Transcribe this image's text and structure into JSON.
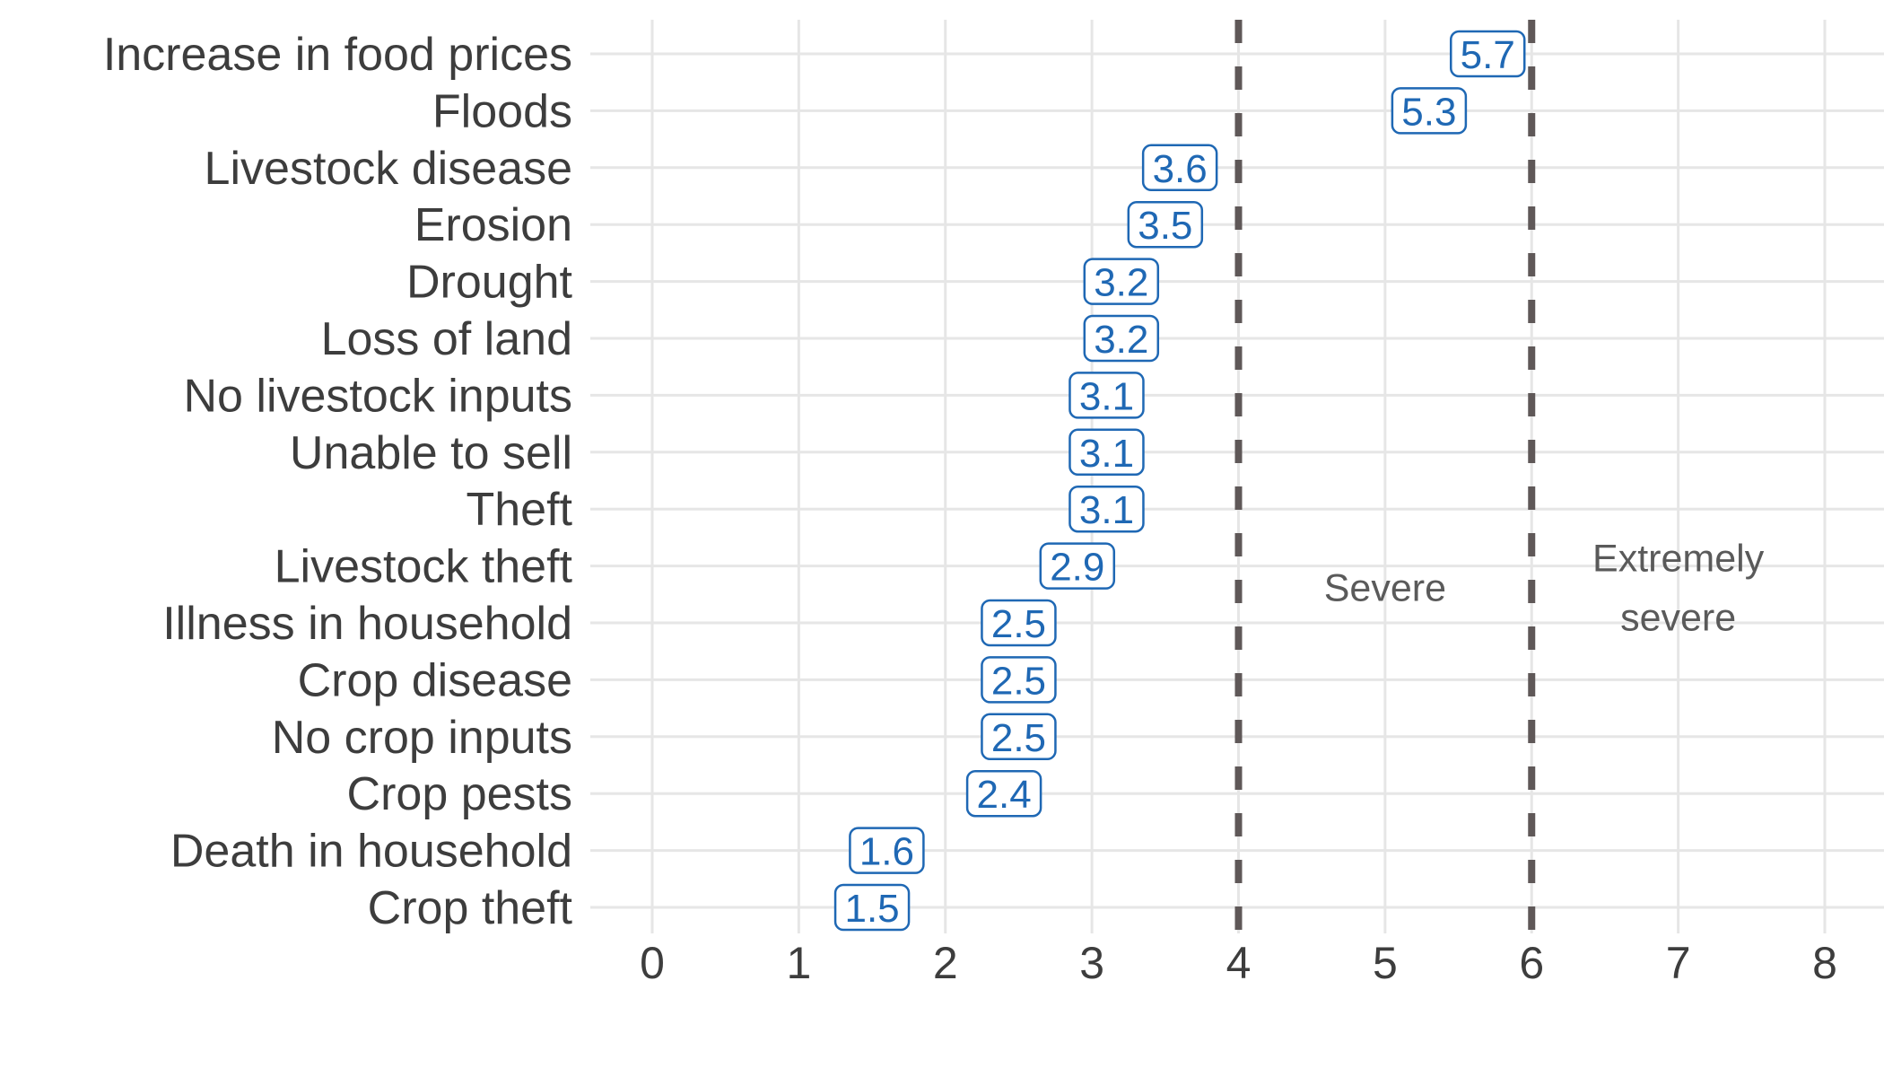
{
  "chart_data": {
    "type": "dot",
    "categories": [
      "Increase in food prices",
      "Floods",
      "Livestock disease",
      "Erosion",
      "Drought",
      "Loss of land",
      "No livestock inputs",
      "Unable to sell",
      "Theft",
      "Livestock theft",
      "Illness in household",
      "Crop disease",
      "No crop inputs",
      "Crop pests",
      "Death in household",
      "Crop theft"
    ],
    "values": [
      5.7,
      5.3,
      3.6,
      3.5,
      3.2,
      3.2,
      3.1,
      3.1,
      3.1,
      2.9,
      2.5,
      2.5,
      2.5,
      2.4,
      1.6,
      1.5
    ],
    "value_labels": [
      "5.7",
      "5.3",
      "3.6",
      "3.5",
      "3.2",
      "3.2",
      "3.1",
      "3.1",
      "3.1",
      "2.9",
      "2.5",
      "2.5",
      "2.5",
      "2.4",
      "1.6",
      "1.5"
    ],
    "xlim": [
      0,
      8
    ],
    "x_ticks": [
      0,
      1,
      2,
      3,
      4,
      5,
      6,
      7,
      8
    ],
    "x_tick_labels": [
      "0",
      "1",
      "2",
      "3",
      "4",
      "5",
      "6",
      "7",
      "8"
    ],
    "title": "",
    "xlabel": "",
    "ylabel": "",
    "grid": true,
    "reference_lines": [
      {
        "x": 4,
        "style": "dashed"
      },
      {
        "x": 6,
        "style": "dashed"
      }
    ],
    "annotations": [
      {
        "lines": [
          "Severe"
        ],
        "x": 5
      },
      {
        "lines": [
          "Extremely",
          "severe"
        ],
        "x": 7
      }
    ],
    "colors": {
      "label_text": "#1f68b4",
      "label_border": "#1f68b4",
      "reference_line": "#5f5858",
      "grid": "#e6e6e6",
      "axis_text": "#3d3d3d",
      "annotation_text": "#5a5a5a"
    }
  }
}
